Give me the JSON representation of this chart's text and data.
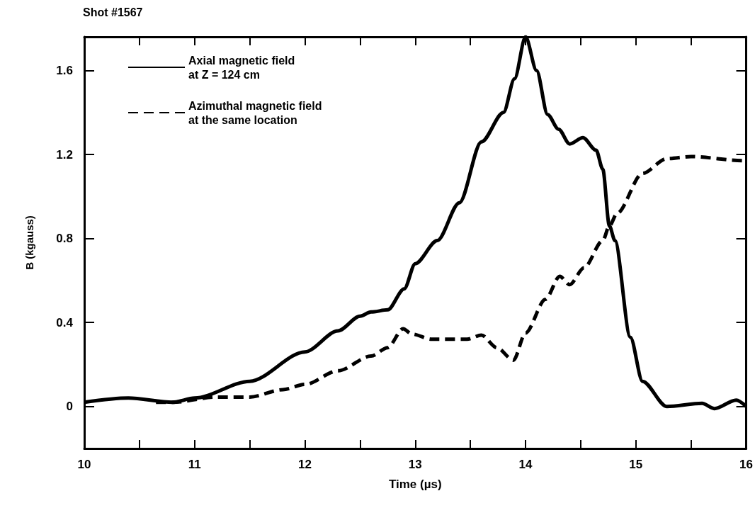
{
  "chart_data": {
    "type": "line",
    "title": "Shot #1567",
    "xlabel": "Time (µs)",
    "ylabel": "B (kgauss)",
    "xlim": [
      10,
      16
    ],
    "ylim": [
      -0.2,
      1.76
    ],
    "xticks": [
      10,
      {
        "value": 10.5,
        "label": null
      },
      11,
      {
        "value": 11.5,
        "label": null
      },
      12,
      {
        "value": 12.5,
        "label": null
      },
      13,
      {
        "value": 13.5,
        "label": null
      },
      14,
      {
        "value": 14.5,
        "label": null
      },
      15,
      {
        "value": 15.5,
        "label": null
      },
      16
    ],
    "yticks": [
      0,
      0.4,
      0.8,
      1.2,
      1.6
    ],
    "legend": "top left",
    "grid": false,
    "marker": "none",
    "series": [
      {
        "name": "Axial magnetic field\nat Z = 124 cm",
        "color": "#000000",
        "line_style": "solid",
        "x": [
          10,
          10.4,
          10.8,
          11,
          11.5,
          12,
          12.3,
          12.5,
          12.6,
          12.75,
          12.9,
          13,
          13.2,
          13.4,
          13.6,
          13.8,
          13.9,
          14,
          14.1,
          14.2,
          14.3,
          14.4,
          14.52,
          14.64,
          14.7,
          14.76,
          14.81,
          14.95,
          15.06,
          15.28,
          15.6,
          15.71,
          15.91,
          16
        ],
        "values": [
          0.02,
          0.04,
          0.02,
          0.04,
          0.12,
          0.26,
          0.36,
          0.43,
          0.45,
          0.46,
          0.56,
          0.68,
          0.79,
          0.97,
          1.26,
          1.4,
          1.56,
          1.76,
          1.6,
          1.39,
          1.32,
          1.25,
          1.28,
          1.22,
          1.13,
          0.86,
          0.79,
          0.33,
          0.12,
          0,
          0.015,
          -0.01,
          0.03,
          0
        ]
      },
      {
        "name": "Azimuthal magnetic field\nat the same location",
        "color": "#000000",
        "line_style": "dashed",
        "x": [
          10.65,
          10.8,
          11.2,
          11.5,
          11.8,
          12,
          12.3,
          12.6,
          12.75,
          12.89,
          12.97,
          13.15,
          13.47,
          13.6,
          13.74,
          13.89,
          14,
          14.18,
          14.31,
          14.4,
          14.53,
          14.7,
          14.76,
          14.83,
          15.06,
          15.28,
          15.5,
          15.98,
          16
        ],
        "values": [
          0.02,
          0.02,
          0.045,
          0.045,
          0.08,
          0.105,
          0.17,
          0.24,
          0.28,
          0.37,
          0.345,
          0.32,
          0.32,
          0.34,
          0.28,
          0.22,
          0.35,
          0.51,
          0.62,
          0.58,
          0.66,
          0.79,
          0.86,
          0.92,
          1.11,
          1.18,
          1.19,
          1.17,
          1.16
        ]
      }
    ]
  }
}
